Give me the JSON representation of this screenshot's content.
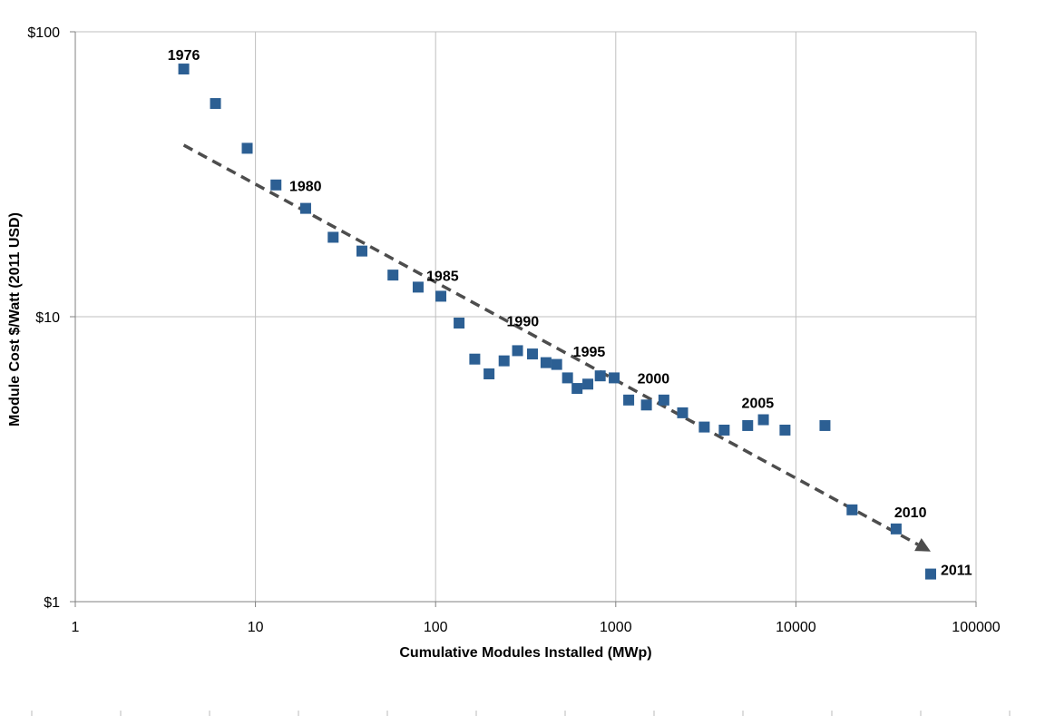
{
  "chart_data": {
    "type": "scatter",
    "title": "",
    "xlabel": "Cumulative Modules Installed (MWp)",
    "ylabel": "Module Cost $/Watt (2011 USD)",
    "xscale": "log",
    "yscale": "log",
    "xlim": [
      1,
      100000
    ],
    "ylim": [
      1,
      100
    ],
    "x_tick_labels": [
      "1",
      "10",
      "100",
      "1000",
      "10000",
      "100000"
    ],
    "y_tick_labels": [
      "$1",
      "$10",
      "$100"
    ],
    "grid": true,
    "legend": "none",
    "colors": {
      "points": "#2c5f93",
      "trend": "#4d4d4d"
    },
    "series": [
      {
        "points": [
          {
            "x": 4,
            "y": 74
          },
          {
            "x": 6,
            "y": 56
          },
          {
            "x": 9,
            "y": 39
          },
          {
            "x": 13,
            "y": 29
          },
          {
            "x": 19,
            "y": 24
          },
          {
            "x": 27,
            "y": 19
          },
          {
            "x": 39,
            "y": 17
          },
          {
            "x": 58,
            "y": 14
          },
          {
            "x": 80,
            "y": 12.7
          },
          {
            "x": 107,
            "y": 11.8
          },
          {
            "x": 135,
            "y": 9.5
          },
          {
            "x": 165,
            "y": 7.1
          },
          {
            "x": 198,
            "y": 6.3
          },
          {
            "x": 240,
            "y": 7.0
          },
          {
            "x": 285,
            "y": 7.6
          },
          {
            "x": 345,
            "y": 7.4
          },
          {
            "x": 410,
            "y": 6.9
          },
          {
            "x": 470,
            "y": 6.8
          },
          {
            "x": 540,
            "y": 6.1
          },
          {
            "x": 610,
            "y": 5.6
          },
          {
            "x": 700,
            "y": 5.8
          },
          {
            "x": 820,
            "y": 6.2
          },
          {
            "x": 980,
            "y": 6.1
          },
          {
            "x": 1180,
            "y": 5.1
          },
          {
            "x": 1480,
            "y": 4.9
          },
          {
            "x": 1850,
            "y": 5.1
          },
          {
            "x": 2350,
            "y": 4.6
          },
          {
            "x": 3100,
            "y": 4.1
          },
          {
            "x": 4000,
            "y": 4.0
          },
          {
            "x": 5400,
            "y": 4.15
          },
          {
            "x": 6600,
            "y": 4.35
          },
          {
            "x": 8700,
            "y": 4.0
          },
          {
            "x": 14500,
            "y": 4.15
          },
          {
            "x": 20500,
            "y": 2.1
          },
          {
            "x": 36000,
            "y": 1.8
          },
          {
            "x": 56000,
            "y": 1.25
          }
        ]
      }
    ],
    "trendline": {
      "style": "dashed-arrow",
      "from": {
        "x": 4,
        "y": 40
      },
      "to": {
        "x": 56000,
        "y": 1.5
      }
    },
    "annotations": [
      {
        "text": "1976",
        "x": 4,
        "y": 74
      },
      {
        "text": "1980",
        "x": 19,
        "y": 24
      },
      {
        "text": "1985",
        "x": 107,
        "y": 11.8
      },
      {
        "text": "1990",
        "x": 285,
        "y": 7.6
      },
      {
        "text": "1995",
        "x": 820,
        "y": 6.2
      },
      {
        "text": "2000",
        "x": 1480,
        "y": 4.9
      },
      {
        "text": "2005",
        "x": 6600,
        "y": 4.35
      },
      {
        "text": "2010",
        "x": 36000,
        "y": 1.8
      },
      {
        "text": "2011",
        "x": 56000,
        "y": 1.25
      }
    ]
  }
}
